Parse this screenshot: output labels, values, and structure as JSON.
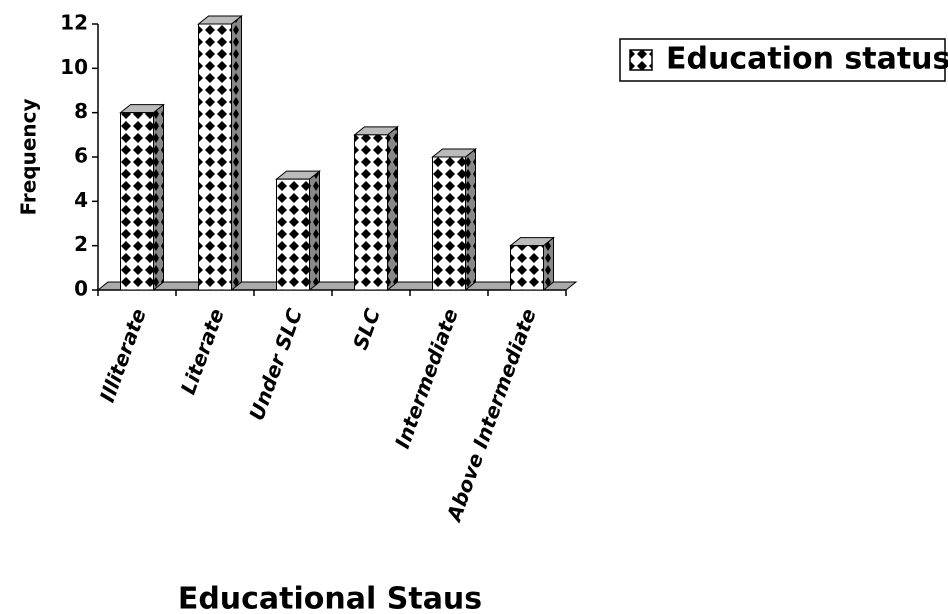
{
  "chart_data": {
    "type": "bar",
    "x_label": "Educational Staus",
    "y_label": "Frequency",
    "categories": [
      "Illiterate",
      "Literate",
      "Under SLC",
      "SLC",
      "Intermediate",
      "Above Intermediate"
    ],
    "series": [
      {
        "name": "Education status",
        "color": "#000000",
        "values": [
          8,
          12,
          5,
          7,
          6,
          2
        ]
      }
    ],
    "ylim": [
      0,
      12
    ],
    "yticks": [
      0,
      2,
      4,
      6,
      8,
      10,
      12
    ],
    "grid": false,
    "legend": "top-right"
  }
}
